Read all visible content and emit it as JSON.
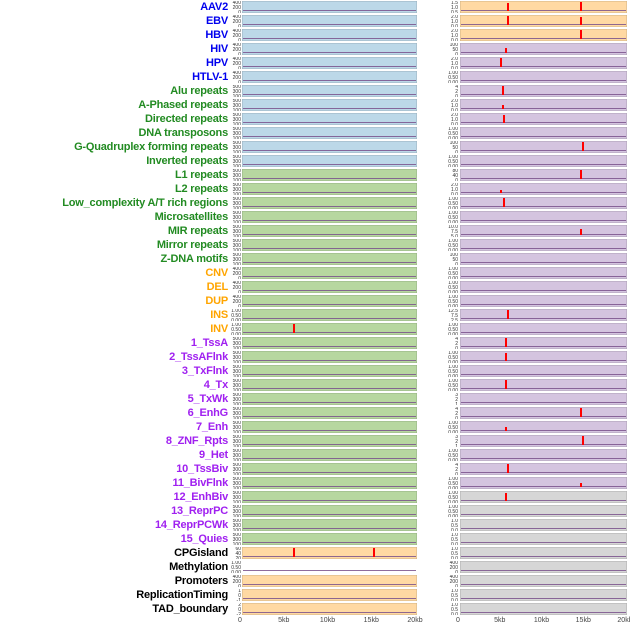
{
  "chart_data": {
    "type": "line",
    "title": "",
    "description": "Genomic feature track matrix: 44 labeled feature rows, two track columns per row, x-axis 0-20kb",
    "x_axis": {
      "ticks": [
        "0",
        "5kb",
        "10kb",
        "15kb",
        "20kb"
      ],
      "range_kb": [
        0,
        20
      ]
    },
    "group_colors": {
      "virus": "#0000EE",
      "repeat": "#228B22",
      "sv": "#FFA500",
      "chromatin": "#A020F0",
      "other": "#000000"
    },
    "track_colors": {
      "blue": "#BCD8E8",
      "green": "#B7D7A0",
      "orange": "#FFD9A3",
      "purple": "#D4C4DF",
      "gray": "#D6D6D6",
      "none": "#FFFFFF"
    },
    "accent_colors": {
      "spike": "#FF0000",
      "baseline": "#7A528C"
    },
    "tick_sets": {
      "c3": [
        "400",
        "200",
        "0"
      ],
      "c4": [
        "500",
        "300",
        "100",
        "0"
      ],
      "v": [
        "2.0",
        "1.0",
        "0.0"
      ],
      "v4": [
        "1.5",
        "1.0",
        "0.5",
        "0.0"
      ],
      "pct": [
        "100",
        "50",
        "0"
      ],
      "f": [
        "1.00",
        "0.50",
        "0.00"
      ],
      "s3": [
        "4",
        "2",
        "0"
      ],
      "s4b": [
        "3",
        "2",
        "1",
        "0"
      ],
      "ins": [
        "12.5",
        "7.5",
        "2.5"
      ],
      "m5": [
        "10.0",
        "7.5",
        "5.0",
        "2.5",
        "0.0"
      ],
      "l1": [
        "80",
        "40",
        "0"
      ],
      "cpg": [
        "60",
        "40",
        "20",
        "0"
      ],
      "rep": [
        "1",
        "0",
        "-1"
      ],
      "rep2": [
        "2",
        "0",
        "-2"
      ],
      "gray": [
        "1.0",
        "0.5",
        "0.0"
      ]
    },
    "rows": [
      {
        "label": "AAV2",
        "group": "virus",
        "left": {
          "bg": "blue",
          "ticks": "c3",
          "spikes": []
        },
        "right": {
          "bg": "orange",
          "ticks": "v4",
          "spikes": [
            [
              5.6,
              0.85
            ],
            [
              14.4,
              0.95
            ]
          ]
        }
      },
      {
        "label": "EBV",
        "group": "virus",
        "left": {
          "bg": "blue",
          "ticks": "c3",
          "spikes": []
        },
        "right": {
          "bg": "orange",
          "ticks": "v",
          "spikes": [
            [
              5.6,
              0.95
            ],
            [
              14.4,
              0.8
            ]
          ]
        }
      },
      {
        "label": "HBV",
        "group": "virus",
        "left": {
          "bg": "blue",
          "ticks": "c3",
          "spikes": []
        },
        "right": {
          "bg": "orange",
          "ticks": "v",
          "spikes": [
            [
              14.4,
              0.95
            ]
          ]
        }
      },
      {
        "label": "HIV",
        "group": "virus",
        "left": {
          "bg": "blue",
          "ticks": "c3",
          "spikes": []
        },
        "right": {
          "bg": "purple",
          "ticks": "pct",
          "spikes": [
            [
              5.4,
              0.5
            ]
          ]
        }
      },
      {
        "label": "HPV",
        "group": "virus",
        "left": {
          "bg": "blue",
          "ticks": "c3",
          "spikes": []
        },
        "right": {
          "bg": "purple",
          "ticks": "v",
          "spikes": [
            [
              4.8,
              0.9
            ]
          ]
        }
      },
      {
        "label": "HTLV-1",
        "group": "virus",
        "left": {
          "bg": "blue",
          "ticks": "c3",
          "spikes": []
        },
        "right": {
          "bg": "purple",
          "ticks": "f",
          "spikes": []
        }
      },
      {
        "label": "Alu repeats",
        "group": "repeat",
        "left": {
          "bg": "blue",
          "ticks": "c4",
          "spikes": []
        },
        "right": {
          "bg": "purple",
          "ticks": "s3",
          "spikes": [
            [
              5.0,
              0.9
            ]
          ]
        }
      },
      {
        "label": "A-Phased repeats",
        "group": "repeat",
        "left": {
          "bg": "blue",
          "ticks": "c4",
          "spikes": []
        },
        "right": {
          "bg": "purple",
          "ticks": "v",
          "spikes": [
            [
              5.0,
              0.4
            ]
          ]
        }
      },
      {
        "label": "Directed repeats",
        "group": "repeat",
        "left": {
          "bg": "blue",
          "ticks": "c4",
          "spikes": []
        },
        "right": {
          "bg": "purple",
          "ticks": "v",
          "spikes": [
            [
              5.2,
              0.85
            ]
          ]
        }
      },
      {
        "label": "DNA transposons",
        "group": "repeat",
        "left": {
          "bg": "blue",
          "ticks": "c4",
          "spikes": []
        },
        "right": {
          "bg": "purple",
          "ticks": "f",
          "spikes": []
        }
      },
      {
        "label": "G-Quadruplex forming repeats",
        "group": "repeat",
        "left": {
          "bg": "blue",
          "ticks": "c4",
          "spikes": []
        },
        "right": {
          "bg": "purple",
          "ticks": "pct",
          "spikes": [
            [
              14.6,
              0.9
            ]
          ]
        }
      },
      {
        "label": "Inverted repeats",
        "group": "repeat",
        "left": {
          "bg": "blue",
          "ticks": "c4",
          "spikes": []
        },
        "right": {
          "bg": "purple",
          "ticks": "f",
          "spikes": []
        }
      },
      {
        "label": "L1 repeats",
        "group": "repeat",
        "left": {
          "bg": "green",
          "ticks": "c4",
          "spikes": []
        },
        "right": {
          "bg": "purple",
          "ticks": "l1",
          "spikes": [
            [
              14.4,
              0.95
            ]
          ]
        }
      },
      {
        "label": "L2 repeats",
        "group": "repeat",
        "left": {
          "bg": "green",
          "ticks": "c4",
          "spikes": []
        },
        "right": {
          "bg": "purple",
          "ticks": "v",
          "spikes": [
            [
              4.8,
              0.35
            ]
          ]
        }
      },
      {
        "label": "Low_complexity A/T rich regions",
        "group": "repeat",
        "left": {
          "bg": "green",
          "ticks": "c4",
          "spikes": []
        },
        "right": {
          "bg": "purple",
          "ticks": "f",
          "spikes": [
            [
              5.2,
              0.9
            ]
          ]
        }
      },
      {
        "label": "Microsatellites",
        "group": "repeat",
        "left": {
          "bg": "green",
          "ticks": "c4",
          "spikes": []
        },
        "right": {
          "bg": "purple",
          "ticks": "f",
          "spikes": []
        }
      },
      {
        "label": "MIR repeats",
        "group": "repeat",
        "left": {
          "bg": "green",
          "ticks": "c4",
          "spikes": []
        },
        "right": {
          "bg": "purple",
          "ticks": "m5",
          "spikes": [
            [
              14.4,
              0.6
            ]
          ]
        }
      },
      {
        "label": "Mirror repeats",
        "group": "repeat",
        "left": {
          "bg": "green",
          "ticks": "c4",
          "spikes": []
        },
        "right": {
          "bg": "purple",
          "ticks": "f",
          "spikes": []
        }
      },
      {
        "label": "Z-DNA motifs",
        "group": "repeat",
        "left": {
          "bg": "green",
          "ticks": "c4",
          "spikes": []
        },
        "right": {
          "bg": "purple",
          "ticks": "pct",
          "spikes": []
        }
      },
      {
        "label": "CNV",
        "group": "sv",
        "left": {
          "bg": "green",
          "ticks": "c3",
          "spikes": []
        },
        "right": {
          "bg": "purple",
          "ticks": "f",
          "spikes": []
        }
      },
      {
        "label": "DEL",
        "group": "sv",
        "left": {
          "bg": "green",
          "ticks": "c3",
          "spikes": []
        },
        "right": {
          "bg": "purple",
          "ticks": "f",
          "spikes": []
        }
      },
      {
        "label": "DUP",
        "group": "sv",
        "left": {
          "bg": "green",
          "ticks": "c3",
          "spikes": []
        },
        "right": {
          "bg": "purple",
          "ticks": "f",
          "spikes": []
        }
      },
      {
        "label": "INS",
        "group": "sv",
        "left": {
          "bg": "green",
          "ticks": "f",
          "spikes": []
        },
        "right": {
          "bg": "purple",
          "ticks": "ins",
          "spikes": [
            [
              5.6,
              0.9
            ]
          ]
        }
      },
      {
        "label": "INV",
        "group": "sv",
        "left": {
          "bg": "green",
          "ticks": "f",
          "spikes": [
            [
              5.8,
              0.95
            ]
          ]
        },
        "right": {
          "bg": "purple",
          "ticks": "f",
          "spikes": []
        }
      },
      {
        "label": "1_TssA",
        "group": "chromatin",
        "left": {
          "bg": "green",
          "ticks": "c4",
          "spikes": []
        },
        "right": {
          "bg": "purple",
          "ticks": "s3",
          "spikes": [
            [
              5.4,
              0.9
            ]
          ]
        }
      },
      {
        "label": "2_TssAFlnk",
        "group": "chromatin",
        "left": {
          "bg": "green",
          "ticks": "c4",
          "spikes": []
        },
        "right": {
          "bg": "purple",
          "ticks": "f",
          "spikes": [
            [
              5.4,
              0.85
            ]
          ]
        }
      },
      {
        "label": "3_TxFlnk",
        "group": "chromatin",
        "left": {
          "bg": "green",
          "ticks": "c4",
          "spikes": []
        },
        "right": {
          "bg": "purple",
          "ticks": "f",
          "spikes": []
        }
      },
      {
        "label": "4_Tx",
        "group": "chromatin",
        "left": {
          "bg": "green",
          "ticks": "c4",
          "spikes": []
        },
        "right": {
          "bg": "purple",
          "ticks": "f",
          "spikes": [
            [
              5.4,
              0.9
            ]
          ]
        }
      },
      {
        "label": "5_TxWk",
        "group": "chromatin",
        "left": {
          "bg": "green",
          "ticks": "c4",
          "spikes": []
        },
        "right": {
          "bg": "purple",
          "ticks": "s4b",
          "spikes": []
        }
      },
      {
        "label": "6_EnhG",
        "group": "chromatin",
        "left": {
          "bg": "green",
          "ticks": "c4",
          "spikes": []
        },
        "right": {
          "bg": "purple",
          "ticks": "s3",
          "spikes": [
            [
              14.4,
              0.9
            ]
          ]
        }
      },
      {
        "label": "7_Enh",
        "group": "chromatin",
        "left": {
          "bg": "green",
          "ticks": "c4",
          "spikes": []
        },
        "right": {
          "bg": "purple",
          "ticks": "f",
          "spikes": [
            [
              5.4,
              0.45
            ]
          ]
        }
      },
      {
        "label": "8_ZNF_Rpts",
        "group": "chromatin",
        "left": {
          "bg": "green",
          "ticks": "c4",
          "spikes": []
        },
        "right": {
          "bg": "purple",
          "ticks": "s4b",
          "spikes": [
            [
              14.6,
              0.9
            ]
          ]
        }
      },
      {
        "label": "9_Het",
        "group": "chromatin",
        "left": {
          "bg": "green",
          "ticks": "c4",
          "spikes": []
        },
        "right": {
          "bg": "purple",
          "ticks": "f",
          "spikes": []
        }
      },
      {
        "label": "10_TssBiv",
        "group": "chromatin",
        "left": {
          "bg": "green",
          "ticks": "c4",
          "spikes": []
        },
        "right": {
          "bg": "purple",
          "ticks": "s3",
          "spikes": [
            [
              5.6,
              0.9
            ]
          ]
        }
      },
      {
        "label": "11_BivFlnk",
        "group": "chromatin",
        "left": {
          "bg": "green",
          "ticks": "c4",
          "spikes": []
        },
        "right": {
          "bg": "purple",
          "ticks": "f",
          "spikes": [
            [
              14.4,
              0.45
            ]
          ]
        }
      },
      {
        "label": "12_EnhBiv",
        "group": "chromatin",
        "left": {
          "bg": "green",
          "ticks": "c4",
          "spikes": []
        },
        "right": {
          "bg": "gray",
          "ticks": "f",
          "spikes": [
            [
              5.4,
              0.85
            ]
          ]
        }
      },
      {
        "label": "13_ReprPC",
        "group": "chromatin",
        "left": {
          "bg": "green",
          "ticks": "c4",
          "spikes": []
        },
        "right": {
          "bg": "gray",
          "ticks": "f",
          "spikes": []
        }
      },
      {
        "label": "14_ReprPCWk",
        "group": "chromatin",
        "left": {
          "bg": "green",
          "ticks": "c4",
          "spikes": []
        },
        "right": {
          "bg": "gray",
          "ticks": "gray",
          "spikes": []
        }
      },
      {
        "label": "15_Quies",
        "group": "chromatin",
        "left": {
          "bg": "green",
          "ticks": "c4",
          "spikes": []
        },
        "right": {
          "bg": "gray",
          "ticks": "gray",
          "spikes": []
        }
      },
      {
        "label": "CPGisland",
        "group": "other",
        "left": {
          "bg": "orange",
          "ticks": "cpg",
          "spikes": [
            [
              5.8,
              0.9
            ],
            [
              15.0,
              0.95
            ]
          ]
        },
        "right": {
          "bg": "gray",
          "ticks": "gray",
          "spikes": []
        }
      },
      {
        "label": "Methylation",
        "group": "other",
        "left": {
          "bg": "none",
          "ticks": "f",
          "spikes": []
        },
        "right": {
          "bg": "gray",
          "ticks": "c3",
          "spikes": []
        }
      },
      {
        "label": "Promoters",
        "group": "other",
        "left": {
          "bg": "orange",
          "ticks": "c3",
          "spikes": []
        },
        "right": {
          "bg": "gray",
          "ticks": "c3",
          "spikes": []
        }
      },
      {
        "label": "ReplicationTiming",
        "group": "other",
        "left": {
          "bg": "orange",
          "ticks": "rep",
          "spikes": []
        },
        "right": {
          "bg": "gray",
          "ticks": "gray",
          "spikes": []
        }
      },
      {
        "label": "TAD_boundary",
        "group": "other",
        "left": {
          "bg": "orange",
          "ticks": "rep2",
          "spikes": []
        },
        "right": {
          "bg": "gray",
          "ticks": "gray",
          "spikes": []
        }
      }
    ]
  }
}
